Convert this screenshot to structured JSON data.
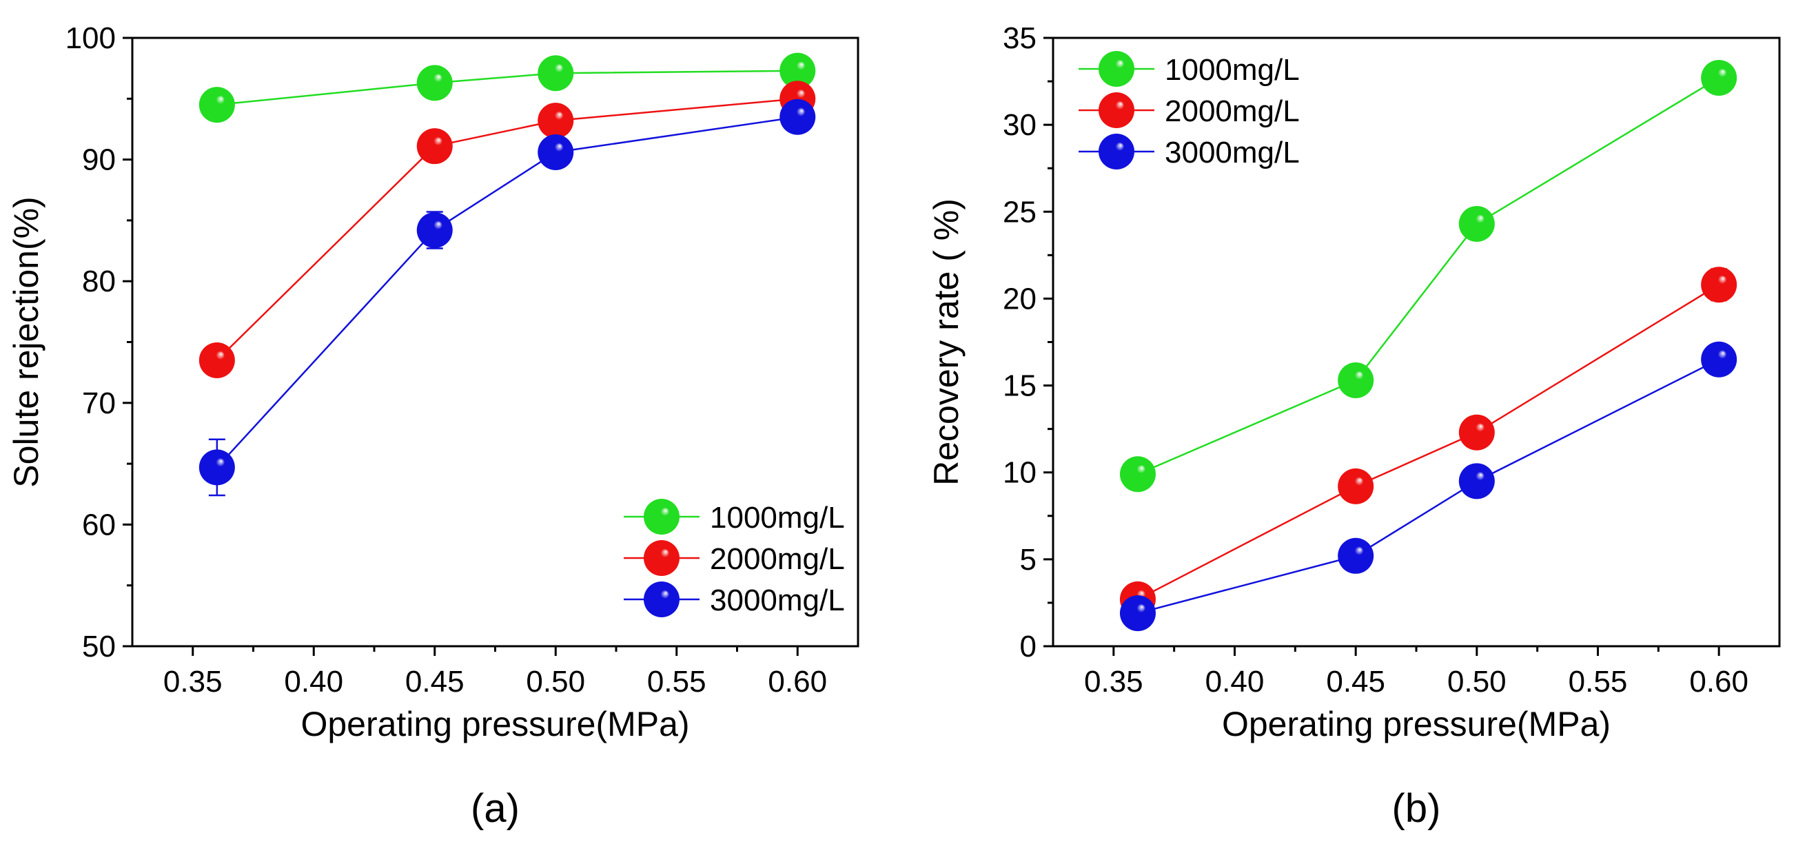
{
  "chart_data": [
    {
      "type": "line",
      "panel_label": "(a)",
      "xlabel": "Operating pressure(MPa)",
      "ylabel": "Solute rejection(%)",
      "xlim": [
        0.325,
        0.625
      ],
      "ylim": [
        50,
        100
      ],
      "xticks": [
        "0.35",
        "0.40",
        "0.45",
        "0.50",
        "0.55",
        "0.60"
      ],
      "yticks": [
        "50",
        "60",
        "70",
        "80",
        "90",
        "100"
      ],
      "x": [
        0.36,
        0.45,
        0.5,
        0.6
      ],
      "legend_position": "bottom-right",
      "series": [
        {
          "name": "1000mg/L",
          "color": "#22dd22",
          "values": [
            94.5,
            96.3,
            97.1,
            97.3
          ],
          "errors": [
            0.4,
            0.4,
            0.3,
            0.3
          ]
        },
        {
          "name": "2000mg/L",
          "color": "#ee1111",
          "values": [
            73.5,
            91.1,
            93.2,
            95.0
          ],
          "errors": [
            0.4,
            0.5,
            0.4,
            0.3
          ]
        },
        {
          "name": "3000mg/L",
          "color": "#1111dd",
          "values": [
            64.7,
            84.2,
            90.6,
            93.5
          ],
          "errors": [
            2.3,
            1.5,
            0.5,
            0.4
          ]
        }
      ]
    },
    {
      "type": "line",
      "panel_label": "(b)",
      "xlabel": "Operating pressure(MPa)",
      "ylabel": "Recovery rate ( %)",
      "xlim": [
        0.325,
        0.625
      ],
      "ylim": [
        0,
        35
      ],
      "xticks": [
        "0.35",
        "0.40",
        "0.45",
        "0.50",
        "0.55",
        "0.60"
      ],
      "yticks": [
        "0",
        "5",
        "10",
        "15",
        "20",
        "25",
        "30",
        "35"
      ],
      "x": [
        0.36,
        0.45,
        0.5,
        0.6
      ],
      "legend_position": "top-left",
      "series": [
        {
          "name": "1000mg/L",
          "color": "#22dd22",
          "values": [
            9.9,
            15.3,
            24.3,
            32.7
          ],
          "errors": [
            0.3,
            0.3,
            0.3,
            0.3
          ]
        },
        {
          "name": "2000mg/L",
          "color": "#ee1111",
          "values": [
            2.7,
            9.2,
            12.3,
            20.8
          ],
          "errors": [
            0.2,
            0.3,
            0.3,
            0.9
          ]
        },
        {
          "name": "3000mg/L",
          "color": "#1111dd",
          "values": [
            1.9,
            5.2,
            9.5,
            16.5
          ],
          "errors": [
            0.2,
            0.3,
            0.3,
            0.4
          ]
        }
      ]
    }
  ]
}
